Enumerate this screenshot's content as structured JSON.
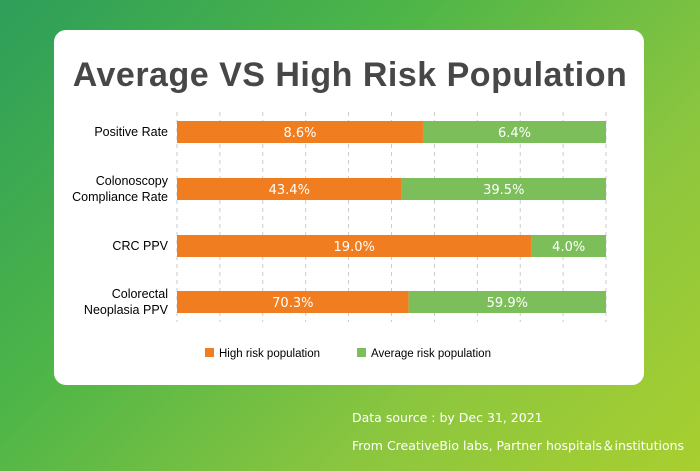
{
  "colors": {
    "high": "#f07d1f",
    "average": "#7cbf5a",
    "grid": "#bfbfbf",
    "label": "#000000"
  },
  "chart_data": {
    "type": "bar",
    "orientation": "horizontal",
    "stacked": true,
    "title": "Average VS High Risk Population",
    "categories": [
      "Positive Rate",
      "Colonoscopy\nCompliance Rate",
      "CRC PPV",
      "Colorectal\nNeoplasia PPV"
    ],
    "series": [
      {
        "name": "High risk population",
        "values": [
          8.6,
          43.4,
          19.0,
          70.3
        ],
        "labels": [
          "8.6%",
          "43.4%",
          "19.0%",
          "70.3%"
        ]
      },
      {
        "name": "Average risk population",
        "values": [
          6.4,
          39.5,
          4.0,
          59.9
        ],
        "labels": [
          "6.4%",
          "39.5%",
          "4.0%",
          "59.9%"
        ]
      }
    ],
    "normalized": "each bar scaled to 100% of total",
    "legend": "bottom"
  },
  "source": {
    "line1": "Data source : by Dec 31, 2021",
    "line2": "From  CreativeBio labs, Partner hospitals＆institutions"
  }
}
